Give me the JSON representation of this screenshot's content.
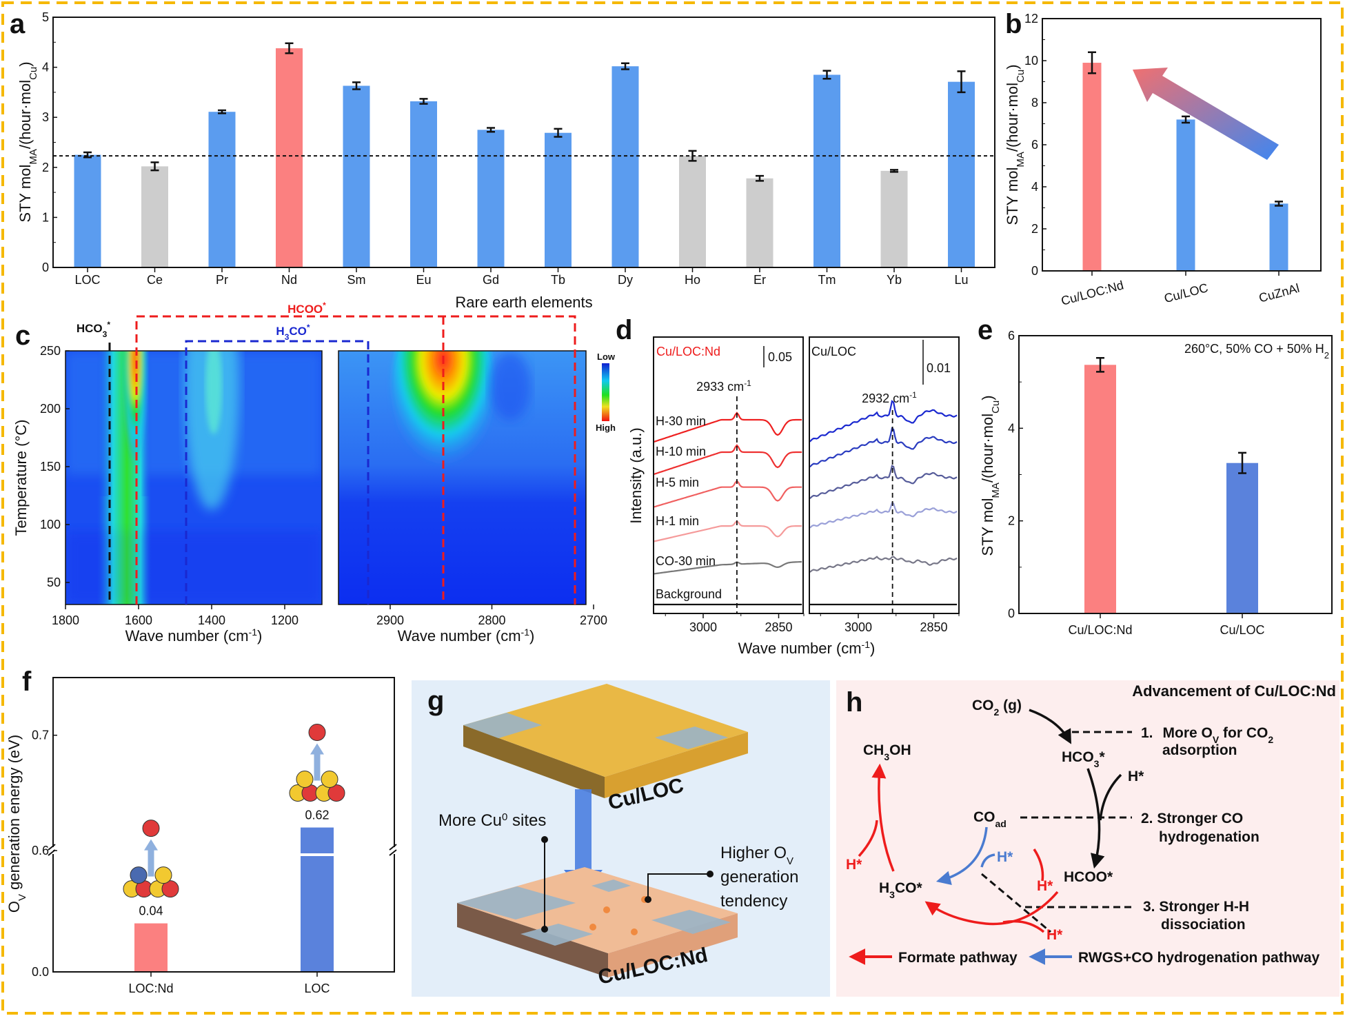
{
  "panel_letters": {
    "a": "a",
    "b": "b",
    "c": "c",
    "d": "d",
    "e": "e",
    "f": "f",
    "g": "g",
    "h": "h"
  },
  "colors": {
    "blue": "#5b9cef",
    "blue_dark": "#5a82dc",
    "red": "#fb8080",
    "gray": "#cdcdcd",
    "frame": "#f5b800"
  },
  "sty_label": {
    "main": "STY mol",
    "sub1": "MA",
    "mid": "/(hour·mol",
    "sub2": "Cu",
    "end": ")"
  },
  "chart_data": [
    {
      "id": "a",
      "type": "bar",
      "categories": [
        "LOC",
        "Ce",
        "Pr",
        "Nd",
        "Sm",
        "Eu",
        "Gd",
        "Tb",
        "Dy",
        "Ho",
        "Er",
        "Tm",
        "Yb",
        "Lu"
      ],
      "values": [
        2.25,
        2.02,
        3.11,
        4.38,
        3.63,
        3.32,
        2.75,
        2.69,
        4.02,
        2.23,
        1.78,
        3.85,
        1.93,
        3.71
      ],
      "errors": [
        0.05,
        0.08,
        0.03,
        0.1,
        0.07,
        0.05,
        0.04,
        0.08,
        0.06,
        0.1,
        0.05,
        0.08,
        0.02,
        0.21
      ],
      "bar_colors": [
        "blue",
        "gray",
        "blue",
        "red",
        "blue",
        "blue",
        "blue",
        "blue",
        "blue",
        "gray",
        "gray",
        "blue",
        "gray",
        "blue"
      ],
      "reference_line": 2.23,
      "xlabel": "Rare earth elements",
      "ylim": [
        0,
        5
      ],
      "yticks": [
        "0",
        "1",
        "2",
        "3",
        "4",
        "5"
      ]
    },
    {
      "id": "b",
      "type": "bar",
      "categories": [
        "Cu/LOC:Nd",
        "Cu/LOC",
        "CuZnAl"
      ],
      "values": [
        9.9,
        7.2,
        3.2
      ],
      "errors": [
        0.5,
        0.15,
        0.1
      ],
      "bar_colors": [
        "red",
        "blue",
        "blue"
      ],
      "ylim": [
        0,
        12
      ],
      "yticks": [
        "0",
        "2",
        "4",
        "6",
        "8",
        "10",
        "12"
      ]
    },
    {
      "id": "e",
      "type": "bar",
      "categories": [
        "Cu/LOC:Nd",
        "Cu/LOC"
      ],
      "values": [
        5.37,
        3.25
      ],
      "errors": [
        0.15,
        0.22
      ],
      "bar_colors": [
        "red",
        "blue_dark"
      ],
      "annotation": {
        "main": "260°C, 50% CO + 50% H",
        "sub": "2"
      },
      "ylim": [
        0,
        6
      ],
      "yticks": [
        "0",
        "2",
        "4",
        "6"
      ]
    },
    {
      "id": "f",
      "type": "bar",
      "categories": [
        "LOC:Nd",
        "LOC"
      ],
      "values": [
        0.04,
        0.62
      ],
      "value_labels": [
        "0.04",
        "0.62"
      ],
      "bar_colors": [
        "red",
        "blue_dark"
      ],
      "ylabel": {
        "main": "O",
        "sub": "V",
        "rest": " generation energy (eV)"
      },
      "axis_break": [
        0.1,
        0.6
      ],
      "yticks": [
        "0.0",
        "0.6",
        "0.7"
      ]
    }
  ],
  "panel_c": {
    "ylabel": "Temperature (°C)",
    "yticks": [
      "250",
      "200",
      "150",
      "100",
      "50"
    ],
    "left_xticks": [
      "1800",
      "1600",
      "1400",
      "1200"
    ],
    "right_xticks": [
      "2900",
      "2800",
      "2700"
    ],
    "xlabel": {
      "main": "Wave number (cm",
      "sup": "-1",
      "end": ")"
    },
    "bands": {
      "hco3": {
        "main": "HCO",
        "sub": "3",
        "sup": "*"
      },
      "hcoo": {
        "main": "HCOO",
        "sup": "*"
      },
      "h3co": {
        "main": "H",
        "sub": "3",
        "rest": "CO",
        "sup": "*"
      }
    },
    "colorbar": {
      "low": "Low",
      "high": "High"
    }
  },
  "panel_d": {
    "ylabel": "Intensity (a.u.)",
    "left_title": "Cu/LOC:Nd",
    "right_title": "Cu/LOC",
    "left_scale": "0.05",
    "right_scale": "0.01",
    "left_peak": {
      "main": "2933 cm",
      "sup": "-1"
    },
    "right_peak": {
      "main": "2932 cm",
      "sup": "-1"
    },
    "series": [
      "H-30 min",
      "H-10 min",
      "H-5 min",
      "H-1 min",
      "CO-30 min",
      "Background"
    ],
    "xticks": [
      "3000",
      "2850"
    ],
    "xlabel": {
      "main": "Wave number (cm",
      "sup": "-1",
      "end": ")"
    }
  },
  "panel_g": {
    "top_label": "Cu/LOC",
    "bottom_label": "Cu/LOC:Nd",
    "cu_sites": {
      "main": "More Cu",
      "sup": "0",
      "rest": " sites"
    },
    "ov": {
      "line1_main": "Higher O",
      "line1_sub": "V",
      "line2": "generation",
      "line3": "tendency"
    }
  },
  "panel_h": {
    "title": "Advancement of Cu/LOC:Nd",
    "co2": {
      "main": "CO",
      "sub": "2",
      "rest": " (g)"
    },
    "hco3": {
      "main": "HCO",
      "sub": "3",
      "rest": "*"
    },
    "coad": {
      "main": "CO",
      "sub": "ad"
    },
    "hcoo": "HCOO*",
    "h3co": {
      "main": "H",
      "sub": "3",
      "rest": "CO*"
    },
    "ch3oh": {
      "main": "CH",
      "sub": "3",
      "rest": "OH"
    },
    "h_star": "H*",
    "note1": {
      "num": "1.",
      "main": "More O",
      "sub1": "V",
      "mid": " for CO",
      "sub2": "2",
      "line2": "adsorption"
    },
    "note2": {
      "line1": "2. Stronger CO",
      "line2": "hydrogenation"
    },
    "note3": {
      "line1": "3. Stronger H-H",
      "line2": "dissociation"
    },
    "legend": {
      "formate": "Formate pathway",
      "rwgs": "RWGS+CO hydrogenation pathway"
    },
    "colors": {
      "formate": "#ee1c1c",
      "rwgs": "#4a7bd0"
    }
  }
}
